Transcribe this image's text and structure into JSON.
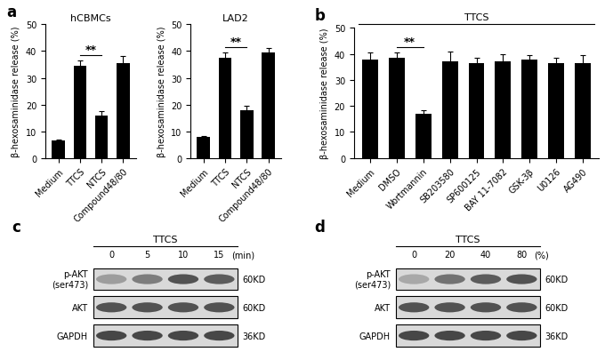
{
  "chart_data": [
    {
      "type": "bar",
      "panel": "a",
      "title": "hCBMCs",
      "y_label": "β-hexosaminidase release (%)",
      "categories": [
        "Medium",
        "TTCS",
        "NTCS",
        "Compound48/80"
      ],
      "values": [
        6.5,
        34.5,
        16,
        35.5
      ],
      "errors": [
        0.5,
        2,
        1.5,
        2.5
      ],
      "color": "#000000",
      "ylim": [
        0,
        50
      ],
      "yticks": [
        0,
        10,
        20,
        30,
        40,
        50
      ],
      "significance": [
        {
          "between": [
            "TTCS",
            "NTCS"
          ],
          "label": "**"
        }
      ]
    },
    {
      "type": "bar",
      "title": "LAD2",
      "y_label": "β-hexosaminidase release (%)",
      "categories": [
        "Medium",
        "TTCS",
        "NTCS",
        "Compound48/80"
      ],
      "values": [
        8,
        37.5,
        18,
        39.5
      ],
      "errors": [
        0.3,
        2,
        1.5,
        1.5
      ],
      "color": "#000000",
      "ylim": [
        0,
        50
      ],
      "yticks": [
        0,
        10,
        20,
        30,
        40,
        50
      ],
      "significance": [
        {
          "between": [
            "TTCS",
            "NTCS"
          ],
          "label": "**"
        }
      ]
    },
    {
      "type": "bar",
      "panel": "b",
      "header": "TTCS",
      "y_label": "β-hexosaminidase release (%)",
      "categories": [
        "Medium",
        "DMSO",
        "Wortmannin",
        "SB203580",
        "SP600125",
        "BAY 11-7082",
        "GSK-3β",
        "U0126",
        "AG490"
      ],
      "values": [
        38,
        38.5,
        17,
        37,
        36.5,
        37,
        38,
        36.5,
        36.5
      ],
      "errors": [
        2.5,
        2,
        1.5,
        4,
        2,
        3,
        1.5,
        2,
        3
      ],
      "color": "#000000",
      "ylim": [
        0,
        50
      ],
      "yticks": [
        0,
        10,
        20,
        30,
        40,
        50
      ],
      "significance": [
        {
          "between": [
            "DMSO",
            "Wortmannin"
          ],
          "label": "**"
        }
      ]
    }
  ],
  "blots": [
    {
      "panel": "c",
      "header": "TTCS",
      "lanes": [
        "0",
        "5",
        "10",
        "15"
      ],
      "unit": "(min)",
      "rows": [
        {
          "label": "p-AKT\n(ser473)",
          "size": "60KD",
          "band_intensity": [
            0.45,
            0.6,
            0.8,
            0.75
          ]
        },
        {
          "label": "AKT",
          "size": "60KD",
          "band_intensity": [
            0.8,
            0.8,
            0.8,
            0.8
          ]
        },
        {
          "label": "GAPDH",
          "size": "36KD",
          "band_intensity": [
            0.85,
            0.85,
            0.85,
            0.85
          ]
        }
      ]
    },
    {
      "panel": "d",
      "header": "TTCS",
      "lanes": [
        "0",
        "20",
        "40",
        "80"
      ],
      "unit": "(%)",
      "rows": [
        {
          "label": "p-AKT\n(ser473)",
          "size": "60KD",
          "band_intensity": [
            0.4,
            0.65,
            0.75,
            0.8
          ]
        },
        {
          "label": "AKT",
          "size": "60KD",
          "band_intensity": [
            0.8,
            0.8,
            0.8,
            0.8
          ]
        },
        {
          "label": "GAPDH",
          "size": "36KD",
          "band_intensity": [
            0.85,
            0.85,
            0.85,
            0.85
          ]
        }
      ]
    }
  ]
}
